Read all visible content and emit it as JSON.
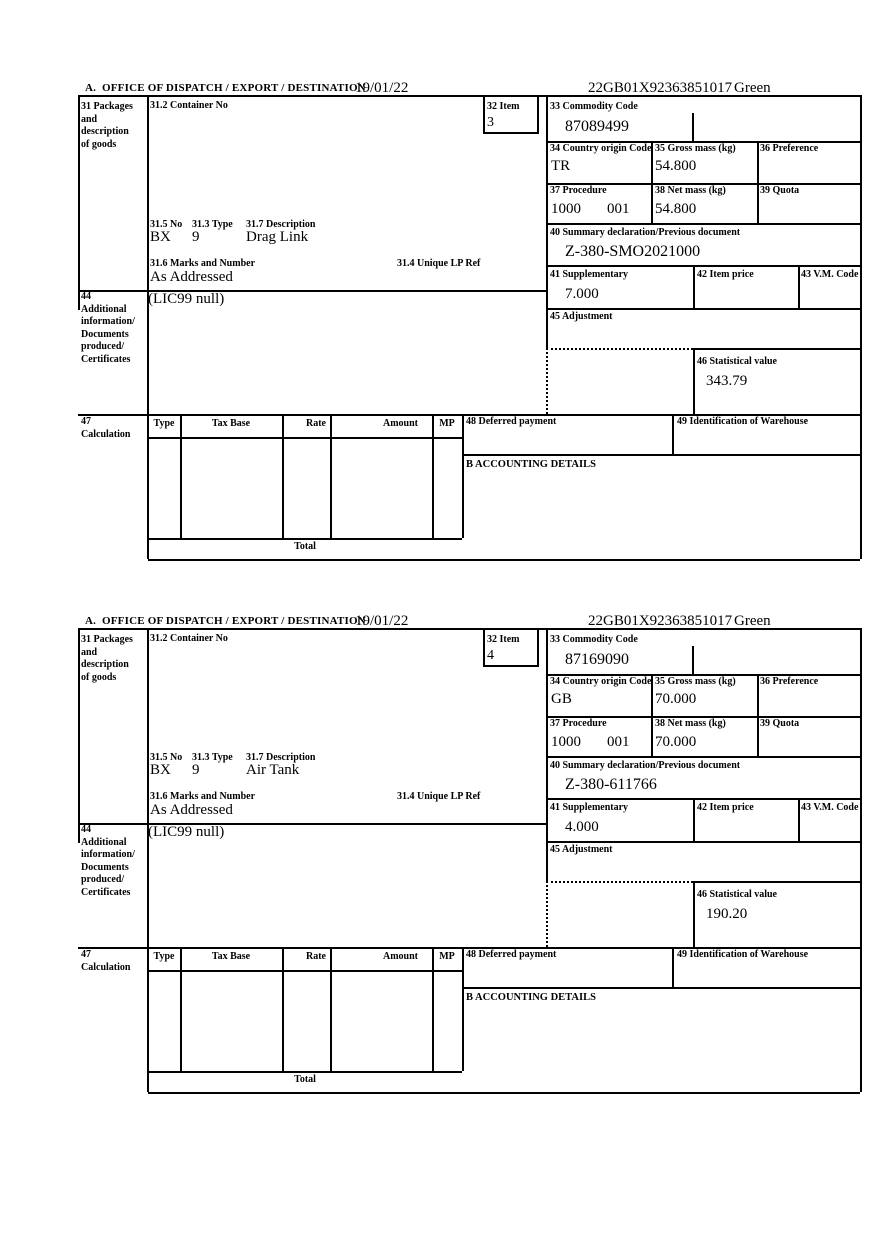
{
  "labels": {
    "header_a": "A.  OFFICE OF DISPATCH / EXPORT / DESTINATION",
    "box31": "31 Packages\nand\ndescription\nof goods",
    "box31_2": "31.2 Container No",
    "box31_5": "31.5 No",
    "box31_3": "31.3 Type",
    "box31_7": "31.7 Description",
    "box31_6": "31.6 Marks and Number",
    "box31_4": "31.4 Unique LP Ref",
    "box32": "32 Item",
    "box33": "33 Commodity Code",
    "box34": "34 Country origin Code",
    "box35": "35 Gross mass (kg)",
    "box36": "36 Preference",
    "box37": "37 Procedure",
    "box38": "38 Net mass (kg)",
    "box39": "39 Quota",
    "box40": "40 Summary declaration/Previous document",
    "box41": "41 Supplementary",
    "box42": "42 Item price",
    "box43": "43 V.M. Code",
    "box44": "44\nAdditional\ninformation/\nDocuments\nproduced/\nCertificates",
    "box45": "45 Adjustment",
    "box46": "46 Statistical value",
    "box47": "47\nCalculation",
    "box48": "48 Deferred payment",
    "box49": "49 Identification of Warehouse",
    "section_b": "B ACCOUNTING DETAILS",
    "col_type": "Type",
    "col_tax_base": "Tax Base",
    "col_rate": "Rate",
    "col_amount": "Amount",
    "col_mp": "MP",
    "total": "Total"
  },
  "items": [
    {
      "date": "19/01/22",
      "mrn": "22GB01X92363851017",
      "routing": "Green",
      "item_no": "3",
      "commodity_code": "87089499",
      "country_origin": "TR",
      "gross_mass": "54.800",
      "procedure": "1000",
      "procedure_code2": "001",
      "net_mass": "54.800",
      "previous_document": "Z-380-SMO2021000",
      "supplementary_units": "7.000",
      "statistical_value": "343.79",
      "packages_no": "BX",
      "packages_type": "9",
      "description": "Drag Link",
      "marks": "As Addressed",
      "additional_information": "(LIC99 null)"
    },
    {
      "date": "19/01/22",
      "mrn": "22GB01X92363851017",
      "routing": "Green",
      "item_no": "4",
      "commodity_code": "87169090",
      "country_origin": "GB",
      "gross_mass": "70.000",
      "procedure": "1000",
      "procedure_code2": "001",
      "net_mass": "70.000",
      "previous_document": "Z-380-611766",
      "supplementary_units": "4.000",
      "statistical_value": "190.20",
      "packages_no": "BX",
      "packages_type": "9",
      "description": "Air Tank",
      "marks": "As Addressed",
      "additional_information": "(LIC99 null)"
    }
  ]
}
